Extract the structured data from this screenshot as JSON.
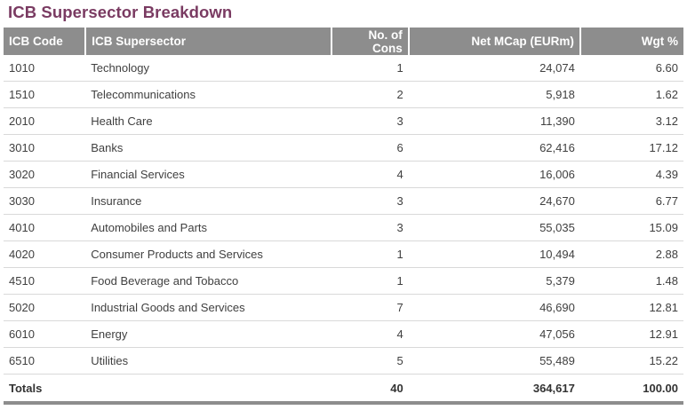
{
  "title": "ICB Supersector Breakdown",
  "columns": {
    "code": "ICB Code",
    "supersector": "ICB Supersector",
    "cons": "No. of Cons",
    "mcap": "Net MCap (EURm)",
    "wgt": "Wgt %"
  },
  "rows": [
    {
      "code": "1010",
      "supersector": "Technology",
      "cons": "1",
      "mcap": "24,074",
      "wgt": "6.60"
    },
    {
      "code": "1510",
      "supersector": "Telecommunications",
      "cons": "2",
      "mcap": "5,918",
      "wgt": "1.62"
    },
    {
      "code": "2010",
      "supersector": "Health Care",
      "cons": "3",
      "mcap": "11,390",
      "wgt": "3.12"
    },
    {
      "code": "3010",
      "supersector": "Banks",
      "cons": "6",
      "mcap": "62,416",
      "wgt": "17.12"
    },
    {
      "code": "3020",
      "supersector": "Financial Services",
      "cons": "4",
      "mcap": "16,006",
      "wgt": "4.39"
    },
    {
      "code": "3030",
      "supersector": "Insurance",
      "cons": "3",
      "mcap": "24,670",
      "wgt": "6.77"
    },
    {
      "code": "4010",
      "supersector": "Automobiles and Parts",
      "cons": "3",
      "mcap": "55,035",
      "wgt": "15.09"
    },
    {
      "code": "4020",
      "supersector": "Consumer Products and Services",
      "cons": "1",
      "mcap": "10,494",
      "wgt": "2.88"
    },
    {
      "code": "4510",
      "supersector": "Food Beverage and Tobacco",
      "cons": "1",
      "mcap": "5,379",
      "wgt": "1.48"
    },
    {
      "code": "5020",
      "supersector": "Industrial Goods and Services",
      "cons": "7",
      "mcap": "46,690",
      "wgt": "12.81"
    },
    {
      "code": "6010",
      "supersector": "Energy",
      "cons": "4",
      "mcap": "47,056",
      "wgt": "12.91"
    },
    {
      "code": "6510",
      "supersector": "Utilities",
      "cons": "5",
      "mcap": "55,489",
      "wgt": "15.22"
    }
  ],
  "totals": {
    "label": "Totals",
    "cons": "40",
    "mcap": "364,617",
    "wgt": "100.00"
  },
  "colors": {
    "title": "#7a3b62",
    "header_bg": "#8d8d8d"
  }
}
